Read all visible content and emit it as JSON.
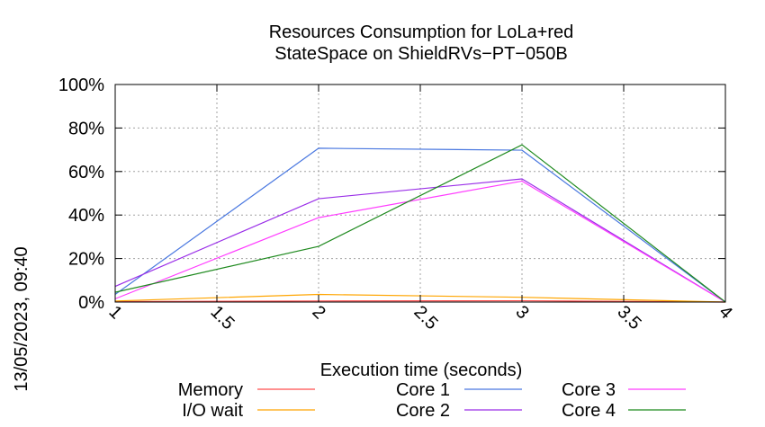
{
  "chart_data": {
    "type": "line",
    "title_lines": [
      "Resources Consumption for LoLa+red",
      "StateSpace on ShieldRVs−PT−050B"
    ],
    "xlabel": "Execution time (seconds)",
    "ylabel": "",
    "xlim": [
      1,
      4
    ],
    "ylim": [
      0,
      100
    ],
    "x_ticks": [
      {
        "value": 1,
        "label": "1"
      },
      {
        "value": 1.5,
        "label": "1.5"
      },
      {
        "value": 2,
        "label": "2"
      },
      {
        "value": 2.5,
        "label": "2.5"
      },
      {
        "value": 3,
        "label": "3"
      },
      {
        "value": 3.5,
        "label": "3.5"
      },
      {
        "value": 4,
        "label": "4"
      }
    ],
    "y_ticks": [
      {
        "value": 0,
        "label": "0%"
      },
      {
        "value": 20,
        "label": "20%"
      },
      {
        "value": 40,
        "label": "40%"
      },
      {
        "value": 60,
        "label": "60%"
      },
      {
        "value": 80,
        "label": "80%"
      },
      {
        "value": 100,
        "label": "100%"
      }
    ],
    "grid": true,
    "legend_position": "bottom",
    "x": [
      1,
      2,
      3,
      4
    ],
    "series": [
      {
        "name": "Memory",
        "color": "#ff4d4d",
        "values": [
          0.2,
          0.5,
          0.6,
          0
        ]
      },
      {
        "name": "I/O wait",
        "color": "#ffa500",
        "values": [
          0.5,
          3.5,
          2.2,
          0
        ]
      },
      {
        "name": "Core 1",
        "color": "#4a78e0",
        "values": [
          3.5,
          70.7,
          69.8,
          0
        ]
      },
      {
        "name": "Core 2",
        "color": "#9a2ee8",
        "values": [
          7.2,
          47.5,
          56.6,
          0
        ]
      },
      {
        "name": "Core 3",
        "color": "#ff3cff",
        "values": [
          1.5,
          38.8,
          55.6,
          0
        ]
      },
      {
        "name": "Core 4",
        "color": "#1f8a1f",
        "values": [
          4.5,
          25.6,
          72.3,
          0
        ]
      }
    ]
  },
  "side_stamp": "13/05/2023, 09:40"
}
